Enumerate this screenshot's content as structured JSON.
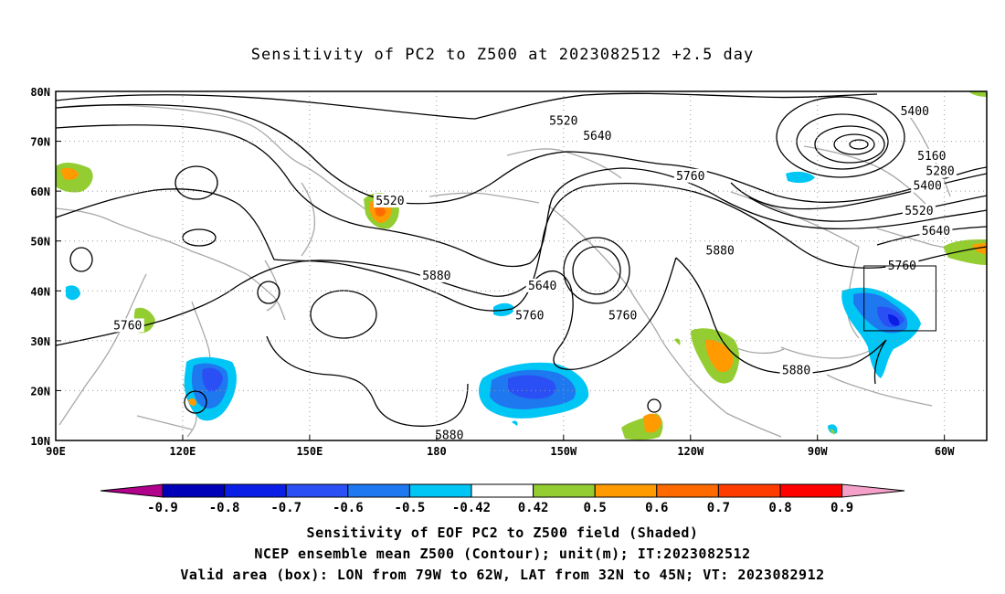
{
  "title": "Sensitivity of PC2 to Z500 at 2023082512 +2.5 day",
  "map": {
    "lon_range": [
      90,
      310
    ],
    "lat_range": [
      10,
      80
    ],
    "lat_labels": [
      "80N",
      "70N",
      "60N",
      "50N",
      "40N",
      "30N",
      "20N",
      "10N"
    ],
    "lon_labels": [
      "90E",
      "120E",
      "150E",
      "180",
      "150W",
      "120W",
      "90W",
      "60W"
    ],
    "contour_labels": [
      {
        "text": "5400",
        "lon": -67,
        "lat": 76
      },
      {
        "text": "5520",
        "lon": -150,
        "lat": 74
      },
      {
        "text": "5640",
        "lon": -142,
        "lat": 71
      },
      {
        "text": "5160",
        "lon": -63,
        "lat": 67
      },
      {
        "text": "5280",
        "lon": -61,
        "lat": 64
      },
      {
        "text": "5400",
        "lon": -64,
        "lat": 61
      },
      {
        "text": "5520",
        "lon": -66,
        "lat": 56
      },
      {
        "text": "5640",
        "lon": -62,
        "lat": 52
      },
      {
        "text": "5760",
        "lon": -120,
        "lat": 63
      },
      {
        "text": "5520",
        "lon": -191,
        "lat": 58
      },
      {
        "text": "5640",
        "lon": -155,
        "lat": 41
      },
      {
        "text": "5760",
        "lon": -158,
        "lat": 35
      },
      {
        "text": "5760",
        "lon": -136,
        "lat": 35
      },
      {
        "text": "5880",
        "lon": -113,
        "lat": 48
      },
      {
        "text": "5760",
        "lon": -70,
        "lat": 45
      },
      {
        "text": "5880",
        "lon": -180,
        "lat": 43
      },
      {
        "text": "5760",
        "lon": -253,
        "lat": 33
      },
      {
        "text": "5880",
        "lon": -95,
        "lat": 24
      },
      {
        "text": "5880",
        "lon": -177,
        "lat": 11
      }
    ],
    "valid_box": {
      "lon_w": -79,
      "lon_e": -62,
      "lat_s": 32,
      "lat_n": 45
    }
  },
  "colorbar": {
    "labels": [
      "-0.9",
      "-0.8",
      "-0.7",
      "-0.6",
      "-0.5",
      "-0.42",
      "0.42",
      "0.5",
      "0.6",
      "0.7",
      "0.8",
      "0.9"
    ],
    "colors": [
      "#0000b8",
      "#0a1ee6",
      "#2a50f5",
      "#1e78f0",
      "#00c6f5",
      "#ffffff",
      "#94cd32",
      "#ff9b00",
      "#ff6a00",
      "#ff3c00",
      "#ff0000"
    ],
    "low_color": "#b0008c",
    "high_color": "#f5a0c8"
  },
  "captions": [
    "Sensitivity of EOF PC2 to Z500 field (Shaded)",
    "NCEP ensemble mean Z500 (Contour); unit(m); IT:2023082512",
    "Valid area (box): LON from 79W to 62W, LAT from 32N to 45N; VT: 2023082912"
  ]
}
